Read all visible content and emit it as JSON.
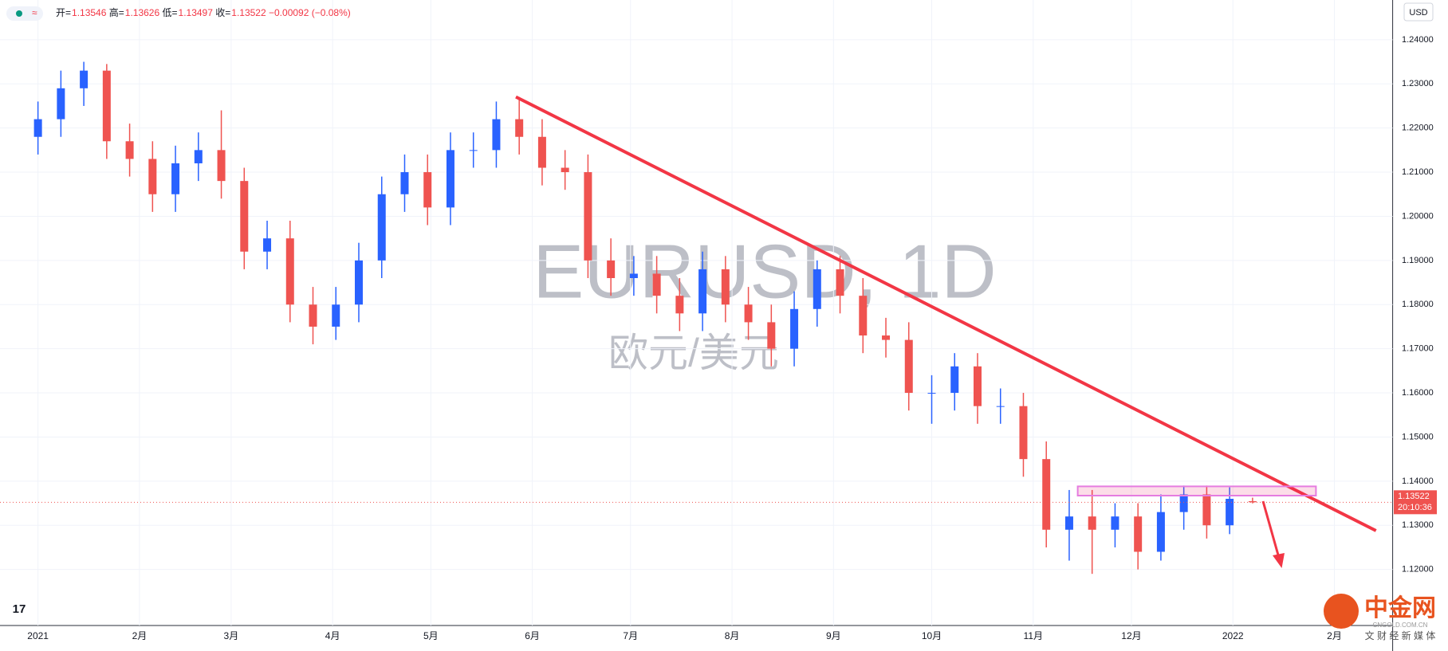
{
  "header": {
    "markers": "≈",
    "ohlc": [
      {
        "label": "开=",
        "value": "1.13546"
      },
      {
        "label": "高=",
        "value": "1.13626"
      },
      {
        "label": "低=",
        "value": "1.13497"
      },
      {
        "label": "收=",
        "value": "1.13522"
      }
    ],
    "change": "−0.00092 (−0.08%)"
  },
  "currency": "USD",
  "watermark": {
    "symbol": "EURUSD, 1D",
    "name": "欧元/美元"
  },
  "price_tag": {
    "price": "1.13522",
    "countdown": "20:10:36"
  },
  "logo": {
    "name": "中金网",
    "domain": "CNGOLD.COM.CN",
    "slogan": "文 财 经 新 媒 体"
  },
  "chart_data": {
    "type": "candlestick",
    "grid": true,
    "xlim": [
      -11.6,
      413.8
    ],
    "ylim": [
      1.1073,
      1.249
    ],
    "xticks": [
      {
        "value": 0,
        "label": "2021"
      },
      {
        "value": 31,
        "label": "2月"
      },
      {
        "value": 59,
        "label": "3月"
      },
      {
        "value": 90,
        "label": "4月"
      },
      {
        "value": 120,
        "label": "5月"
      },
      {
        "value": 151,
        "label": "6月"
      },
      {
        "value": 181,
        "label": "7月"
      },
      {
        "value": 212,
        "label": "8月"
      },
      {
        "value": 243,
        "label": "9月"
      },
      {
        "value": 273,
        "label": "10月"
      },
      {
        "value": 304,
        "label": "11月"
      },
      {
        "value": 334,
        "label": "12月"
      },
      {
        "value": 365,
        "label": "2022"
      },
      {
        "value": 396,
        "label": "2月"
      }
    ],
    "yticks": [
      {
        "value": 1.12,
        "label": "1.12000"
      },
      {
        "value": 1.13,
        "label": "1.13000"
      },
      {
        "value": 1.14,
        "label": "1.14000"
      },
      {
        "value": 1.15,
        "label": "1.15000"
      },
      {
        "value": 1.16,
        "label": "1.16000"
      },
      {
        "value": 1.17,
        "label": "1.17000"
      },
      {
        "value": 1.18,
        "label": "1.18000"
      },
      {
        "value": 1.19,
        "label": "1.19000"
      },
      {
        "value": 1.2,
        "label": "1.20000"
      },
      {
        "value": 1.21,
        "label": "1.21000"
      },
      {
        "value": 1.22,
        "label": "1.22000"
      },
      {
        "value": 1.23,
        "label": "1.23000"
      },
      {
        "value": 1.24,
        "label": "1.24000"
      }
    ],
    "up_color": "#2962ff",
    "down_color": "#ef5350",
    "last_price": 1.13522,
    "x": [
      0,
      7,
      14,
      21,
      28,
      35,
      42,
      49,
      56,
      63,
      70,
      77,
      84,
      91,
      98,
      105,
      112,
      119,
      126,
      133,
      140,
      147,
      154,
      161,
      168,
      175,
      182,
      189,
      196,
      203,
      210,
      217,
      224,
      231,
      238,
      245,
      252,
      259,
      266,
      273,
      280,
      287,
      294,
      301,
      308,
      315,
      322,
      329,
      336,
      343,
      350,
      357,
      364,
      371
    ],
    "open": [
      1.218,
      1.222,
      1.229,
      1.233,
      1.217,
      1.213,
      1.205,
      1.212,
      1.215,
      1.208,
      1.192,
      1.195,
      1.18,
      1.175,
      1.18,
      1.19,
      1.205,
      1.21,
      1.202,
      1.215,
      1.215,
      1.222,
      1.218,
      1.211,
      1.21,
      1.19,
      1.186,
      1.187,
      1.182,
      1.178,
      1.188,
      1.18,
      1.176,
      1.17,
      1.179,
      1.188,
      1.182,
      1.173,
      1.172,
      1.16,
      1.16,
      1.166,
      1.157,
      1.157,
      1.145,
      1.129,
      1.132,
      1.129,
      1.132,
      1.124,
      1.133,
      1.137,
      1.13,
      1.13546
    ],
    "high": [
      1.226,
      1.233,
      1.235,
      1.2345,
      1.221,
      1.217,
      1.216,
      1.219,
      1.224,
      1.211,
      1.199,
      1.199,
      1.184,
      1.184,
      1.194,
      1.209,
      1.214,
      1.214,
      1.219,
      1.219,
      1.226,
      1.227,
      1.222,
      1.215,
      1.214,
      1.195,
      1.191,
      1.191,
      1.186,
      1.192,
      1.191,
      1.184,
      1.18,
      1.183,
      1.19,
      1.191,
      1.186,
      1.177,
      1.176,
      1.164,
      1.169,
      1.169,
      1.161,
      1.16,
      1.149,
      1.138,
      1.138,
      1.135,
      1.135,
      1.137,
      1.139,
      1.139,
      1.1386,
      1.13626
    ],
    "low": [
      1.214,
      1.218,
      1.225,
      1.213,
      1.209,
      1.201,
      1.201,
      1.208,
      1.204,
      1.188,
      1.188,
      1.176,
      1.171,
      1.172,
      1.176,
      1.186,
      1.201,
      1.198,
      1.198,
      1.211,
      1.211,
      1.214,
      1.207,
      1.206,
      1.186,
      1.182,
      1.182,
      1.178,
      1.174,
      1.174,
      1.176,
      1.172,
      1.166,
      1.166,
      1.175,
      1.178,
      1.169,
      1.168,
      1.156,
      1.153,
      1.156,
      1.153,
      1.153,
      1.141,
      1.125,
      1.122,
      1.119,
      1.125,
      1.12,
      1.122,
      1.129,
      1.127,
      1.128,
      1.13497
    ],
    "close": [
      1.222,
      1.229,
      1.233,
      1.217,
      1.213,
      1.205,
      1.212,
      1.215,
      1.208,
      1.192,
      1.195,
      1.18,
      1.175,
      1.18,
      1.19,
      1.205,
      1.21,
      1.202,
      1.215,
      1.215,
      1.222,
      1.218,
      1.211,
      1.21,
      1.19,
      1.186,
      1.187,
      1.182,
      1.178,
      1.188,
      1.18,
      1.176,
      1.17,
      1.179,
      1.188,
      1.182,
      1.173,
      1.172,
      1.16,
      1.16,
      1.166,
      1.157,
      1.157,
      1.145,
      1.129,
      1.132,
      1.129,
      1.132,
      1.124,
      1.133,
      1.137,
      1.13,
      1.136,
      1.13522
    ]
  }
}
